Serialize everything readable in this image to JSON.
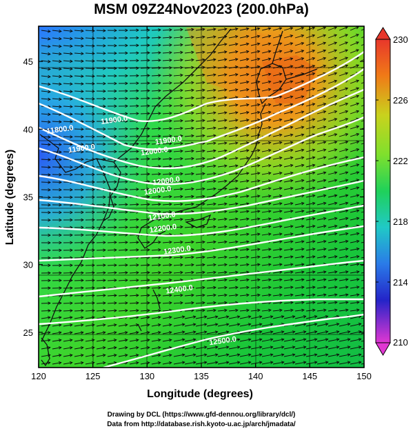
{
  "title": "MSM 09Z24Nov2023 (200.0hPa)",
  "chart_data": {
    "type": "heatmap",
    "title": "MSM 09Z24Nov2023 (200.0hPa)",
    "xlabel": "Longitude (degrees)",
    "ylabel": "Latitude  (degrees)",
    "xlim": [
      120,
      150
    ],
    "ylim": [
      22.4,
      47.6
    ],
    "x_ticks": [
      "120",
      "125",
      "130",
      "135",
      "140",
      "145",
      "150"
    ],
    "y_ticks": [
      "25",
      "30",
      "35",
      "40",
      "45"
    ],
    "colorbar": {
      "min": 210,
      "max": 230,
      "ticks": [
        "230",
        "226",
        "222",
        "218",
        "214",
        "210"
      ]
    },
    "contours": [
      {
        "label": "11800.0",
        "lon": 122.0,
        "lat": 39.8
      },
      {
        "label": "11900.0",
        "lon": 124.0,
        "lat": 38.4
      },
      {
        "label": "11900.0",
        "lon": 127.0,
        "lat": 40.5
      },
      {
        "label": "11900.0",
        "lon": 132.0,
        "lat": 39.0
      },
      {
        "label": "12000.0",
        "lon": 130.7,
        "lat": 38.2
      },
      {
        "label": "12000.0",
        "lon": 131.8,
        "lat": 36.0
      },
      {
        "label": "12000.0",
        "lon": 131.0,
        "lat": 35.3
      },
      {
        "label": "12100.0",
        "lon": 131.4,
        "lat": 33.4
      },
      {
        "label": "12200.0",
        "lon": 131.5,
        "lat": 32.5
      },
      {
        "label": "12300.0",
        "lon": 132.8,
        "lat": 30.9
      },
      {
        "label": "12400.0",
        "lon": 133.0,
        "lat": 28.0
      },
      {
        "label": "12500.0",
        "lon": 137.0,
        "lat": 24.2
      }
    ]
  },
  "credits": {
    "line1": "Drawing by DCL (https://www.gfd-dennou.org/library/dcl/)",
    "line2": "Data from http://database.rish.kyoto-u.ac.jp/arch/jmadata/"
  }
}
